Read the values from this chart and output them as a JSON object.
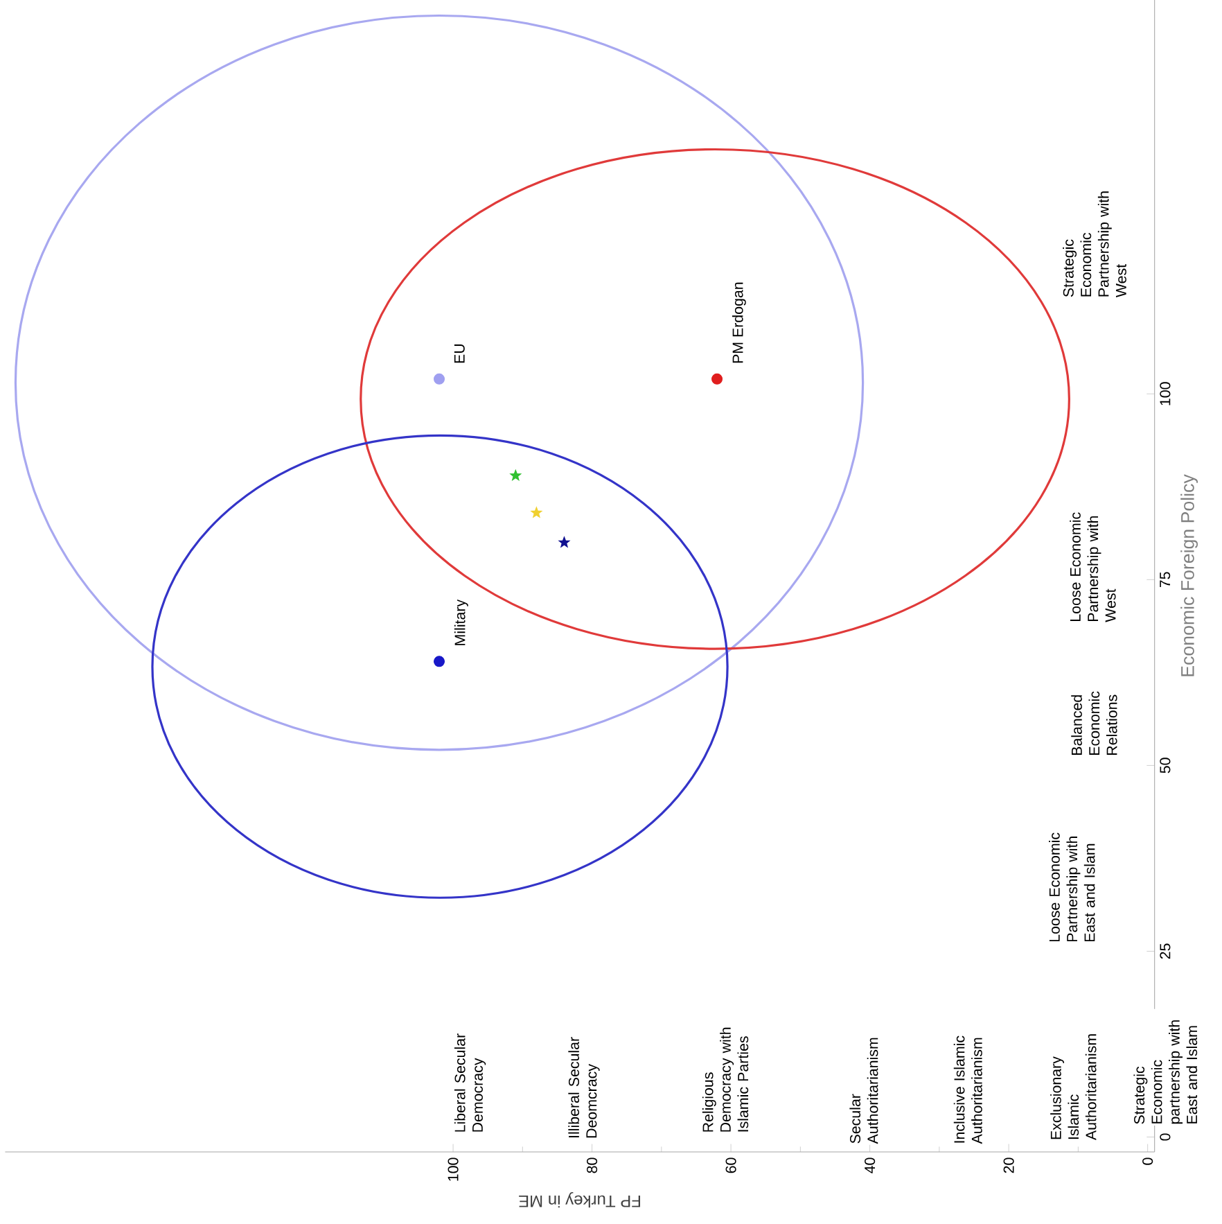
{
  "chart_data": {
    "type": "scatter",
    "xlabel": "FP Turkey in ME",
    "ylabel": "Economic Foreign Policy",
    "xlim": [
      164.5,
      -1
    ],
    "ylim": [
      -2,
      153
    ],
    "xticks": [
      0,
      20,
      40,
      60,
      80,
      100
    ],
    "yticks": [
      0,
      25,
      50,
      75,
      100
    ],
    "series": [
      {
        "type": "scatter",
        "name": "EU",
        "color": "#9f9ff0",
        "marker": "circle",
        "x": [
          102
        ],
        "values": [
          102
        ]
      },
      {
        "type": "scatter",
        "name": "PM Erdogan",
        "color": "#e01e1e",
        "marker": "circle",
        "x": [
          62
        ],
        "values": [
          102
        ]
      },
      {
        "type": "scatter",
        "name": "Military",
        "color": "#1818c8",
        "marker": "circle",
        "x": [
          102
        ],
        "values": [
          64
        ]
      },
      {
        "type": "scatter",
        "color": "#30c030",
        "marker": "star",
        "x": [
          91
        ],
        "values": [
          89
        ]
      },
      {
        "type": "scatter",
        "color": "#f0d030",
        "marker": "star",
        "x": [
          88
        ],
        "values": [
          84
        ]
      },
      {
        "type": "scatter",
        "color": "#101090",
        "marker": "star",
        "x": [
          84
        ],
        "values": [
          80
        ]
      }
    ],
    "annotations": [
      "Liberal Secular Democracy",
      "Illiberal Secular Deomcracy",
      "Religious Democracy with Islamic Parties",
      "Secular Authoritarianism",
      "Inclusive Islamic Authoritarianism",
      "Exclusionary Islamic Authoritarianism",
      "Strategic Economic partnership with East and Islam",
      "Loose Economic Partnership with East and Islam",
      "Balanced Economic Relations",
      "Loose Economic Partnership with West",
      "Strategic Economic Partnership with West"
    ]
  }
}
